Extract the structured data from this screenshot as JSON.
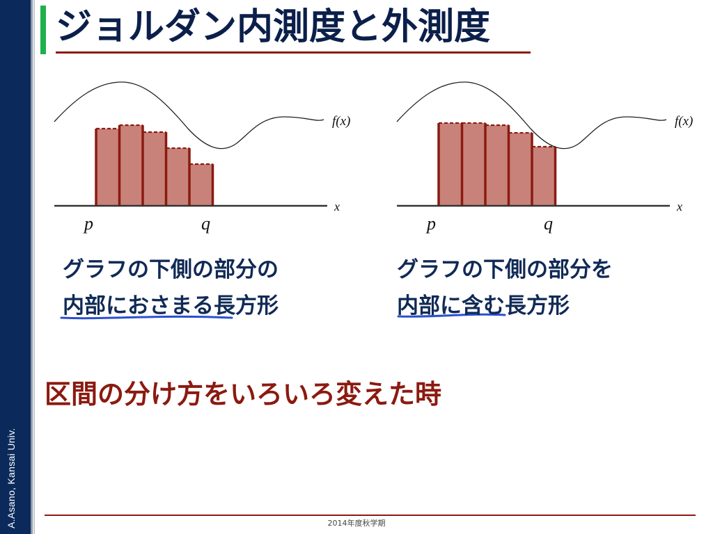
{
  "slide": {
    "title": "ジョルダン内測度と外測度",
    "author": "A.Asano, Kansai Univ.",
    "footer": "2014年度秋学期",
    "section_text": "区間の分け方をいろいろ変えた時"
  },
  "colors": {
    "sidebar": "#0b2a5b",
    "title_accent": "#20b04a",
    "title_text": "#0b1f4a",
    "underline": "#8b1a10",
    "bar_fill": "#c8827a",
    "bar_edge": "#8b1a10",
    "caption_text": "#102a56",
    "highlight_stroke": "#2a4fd0"
  },
  "diagrams": [
    {
      "id": "inner",
      "function_label": "f(x)",
      "x_axis_label": "x",
      "p_label": "p",
      "q_label": "q",
      "caption_line1": "グラフの下側の部分の",
      "caption_line2": "内部におさまる長方形",
      "bar_heights": [
        0.867,
        0.906,
        0.828,
        0.648,
        0.469
      ]
    },
    {
      "id": "outer",
      "function_label": "f(x)",
      "x_axis_label": "x",
      "p_label": "p",
      "q_label": "q",
      "caption_line1": "グラフの下側の部分を",
      "caption_line2": "内部に含む長方形",
      "bar_heights": [
        0.93,
        0.93,
        0.906,
        0.82,
        0.664
      ]
    }
  ]
}
